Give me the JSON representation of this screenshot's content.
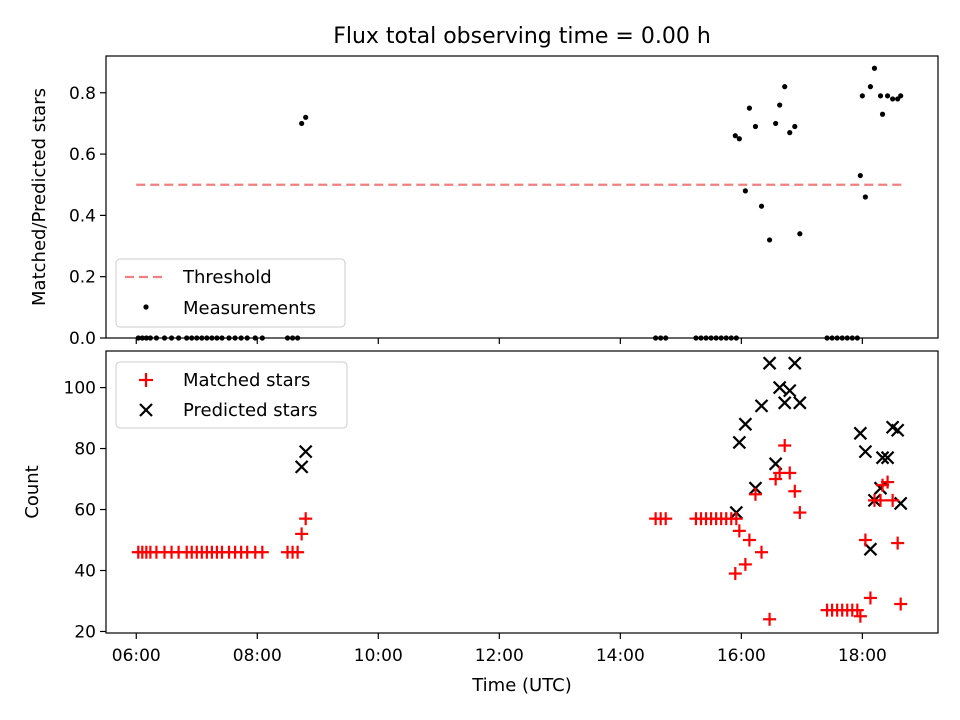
{
  "chart_data": [
    {
      "type": "scatter",
      "title": "Flux total observing time = 0.00 h",
      "xlabel": "",
      "ylabel": "Matched/Predicted stars",
      "xlim": [
        "05:30",
        "19:15"
      ],
      "ylim": [
        0,
        0.92
      ],
      "yticks": [
        0.0,
        0.2,
        0.4,
        0.6,
        0.8
      ],
      "ytick_labels": [
        "0.0",
        "0.2",
        "0.4",
        "0.6",
        "0.8"
      ],
      "legend": {
        "position": "lower-left",
        "entries": [
          "Threshold",
          "Measurements"
        ]
      },
      "colors": {
        "threshold": "#f08080",
        "measurements": "#000000"
      },
      "threshold": {
        "name": "Threshold",
        "value": 0.5,
        "x": [
          "06:00",
          "18:40"
        ]
      },
      "series": [
        {
          "name": "Measurements",
          "x": [
            "06:02",
            "06:06",
            "06:10",
            "06:14",
            "06:20",
            "06:28",
            "06:35",
            "06:42",
            "06:50",
            "06:55",
            "07:00",
            "07:05",
            "07:10",
            "07:15",
            "07:20",
            "07:25",
            "07:32",
            "07:38",
            "07:44",
            "07:50",
            "07:58",
            "08:05",
            "08:30",
            "08:35",
            "08:40",
            "08:44",
            "08:48",
            "14:35",
            "14:40",
            "14:45",
            "15:15",
            "15:20",
            "15:25",
            "15:30",
            "15:35",
            "15:40",
            "15:45",
            "15:50",
            "15:55",
            "15:54",
            "15:58",
            "16:04",
            "16:08",
            "16:14",
            "16:20",
            "16:28",
            "16:34",
            "16:38",
            "16:43",
            "16:48",
            "16:53",
            "16:58",
            "17:25",
            "17:30",
            "17:35",
            "17:40",
            "17:45",
            "17:50",
            "17:55",
            "17:58",
            "18:00",
            "18:03",
            "18:08",
            "18:12",
            "18:18",
            "18:20",
            "18:25",
            "18:30",
            "18:35",
            "18:38"
          ],
          "y": [
            0,
            0,
            0,
            0,
            0,
            0,
            0,
            0,
            0,
            0,
            0,
            0,
            0,
            0,
            0,
            0,
            0,
            0,
            0,
            0,
            0,
            0,
            0,
            0,
            0,
            0.7,
            0.72,
            0,
            0,
            0,
            0,
            0,
            0,
            0,
            0,
            0,
            0,
            0,
            0,
            0.66,
            0.65,
            0.48,
            0.75,
            0.69,
            0.43,
            0.32,
            0.7,
            0.76,
            0.82,
            0.67,
            0.69,
            0.34,
            0,
            0,
            0,
            0,
            0,
            0,
            0,
            0.53,
            0.79,
            0.46,
            0.82,
            0.88,
            0.79,
            0.73,
            0.79,
            0.78,
            0.78,
            0.79
          ]
        }
      ]
    },
    {
      "type": "scatter",
      "xlabel": "Time (UTC)",
      "ylabel": "Count",
      "xlim": [
        "05:30",
        "19:15"
      ],
      "ylim": [
        19.5,
        112
      ],
      "xticks": [
        "06:00",
        "08:00",
        "10:00",
        "12:00",
        "14:00",
        "16:00",
        "18:00"
      ],
      "yticks": [
        20,
        40,
        60,
        80,
        100
      ],
      "legend": {
        "position": "upper-left",
        "entries": [
          "Matched stars",
          "Predicted stars"
        ]
      },
      "colors": {
        "matched": "#ff0000",
        "predicted": "#000000"
      },
      "series": [
        {
          "name": "Matched stars",
          "marker": "plus",
          "x": [
            "06:02",
            "06:06",
            "06:10",
            "06:14",
            "06:20",
            "06:28",
            "06:35",
            "06:42",
            "06:50",
            "06:55",
            "07:00",
            "07:05",
            "07:10",
            "07:15",
            "07:20",
            "07:25",
            "07:32",
            "07:38",
            "07:44",
            "07:50",
            "07:58",
            "08:05",
            "08:30",
            "08:35",
            "08:40",
            "08:44",
            "08:48",
            "14:35",
            "14:40",
            "14:45",
            "15:15",
            "15:20",
            "15:25",
            "15:30",
            "15:35",
            "15:40",
            "15:45",
            "15:50",
            "15:55",
            "15:54",
            "15:58",
            "16:04",
            "16:08",
            "16:14",
            "16:20",
            "16:28",
            "16:34",
            "16:38",
            "16:43",
            "16:48",
            "16:53",
            "16:58",
            "17:25",
            "17:30",
            "17:35",
            "17:40",
            "17:45",
            "17:50",
            "17:55",
            "17:58",
            "18:03",
            "18:08",
            "18:12",
            "18:18",
            "18:20",
            "18:25",
            "18:30",
            "18:35",
            "18:38"
          ],
          "y": [
            46,
            46,
            46,
            46,
            46,
            46,
            46,
            46,
            46,
            46,
            46,
            46,
            46,
            46,
            46,
            46,
            46,
            46,
            46,
            46,
            46,
            46,
            46,
            46,
            46,
            52,
            57,
            57,
            57,
            57,
            57,
            57,
            57,
            57,
            57,
            57,
            57,
            57,
            57,
            39,
            53,
            42,
            50,
            65,
            46,
            24,
            70,
            72,
            81,
            72,
            66,
            59,
            27,
            27,
            27,
            27,
            27,
            27,
            27,
            25,
            50,
            31,
            63,
            63,
            68,
            69,
            63,
            49,
            29
          ],
          "note_x_alignment": "x values mirror upper panel"
        },
        {
          "name": "Predicted stars",
          "marker": "x",
          "x": [
            "08:44",
            "08:48",
            "15:55",
            "15:58",
            "16:04",
            "16:14",
            "16:20",
            "16:28",
            "16:34",
            "16:38",
            "16:43",
            "16:48",
            "16:53",
            "16:58",
            "17:58",
            "18:03",
            "18:08",
            "18:12",
            "18:18",
            "18:20",
            "18:25",
            "18:30",
            "18:35",
            "18:38"
          ],
          "y": [
            74,
            79,
            59,
            82,
            88,
            67,
            94,
            108,
            75,
            100,
            95,
            99,
            108,
            95,
            85,
            79,
            47,
            63,
            67,
            77,
            77,
            87,
            86,
            62
          ]
        }
      ]
    }
  ]
}
